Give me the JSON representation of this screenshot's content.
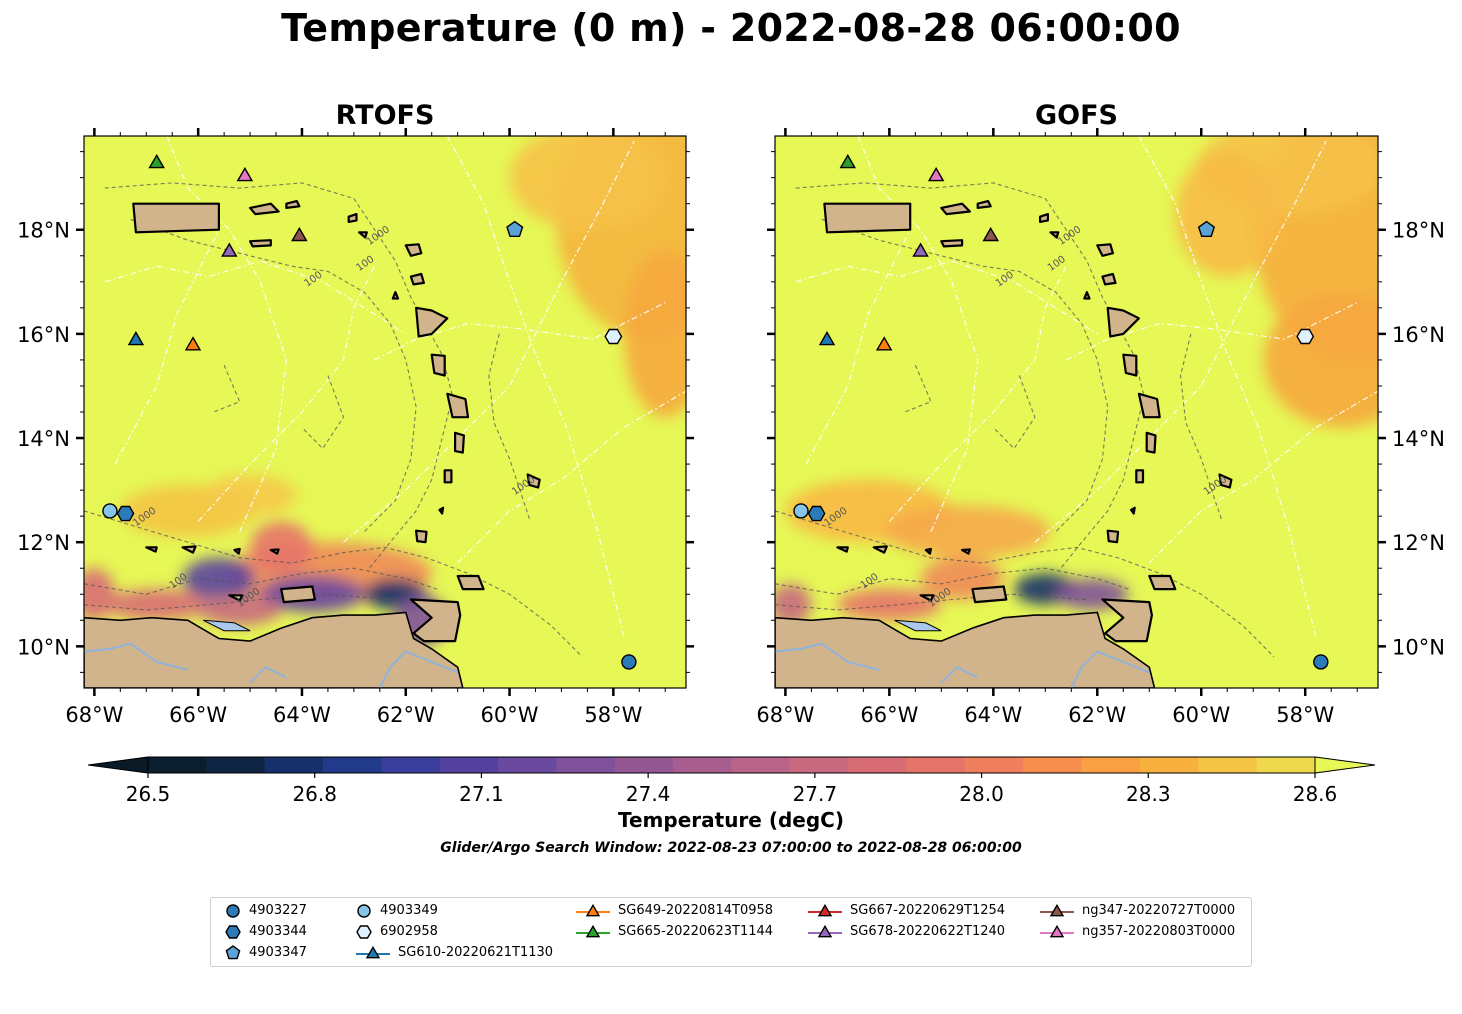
{
  "title": "Temperature (0 m) - 2022-08-28 06:00:00",
  "panels": [
    {
      "title": "RTOFS"
    },
    {
      "title": "GOFS"
    }
  ],
  "axes": {
    "x_ticks": [
      "68°W",
      "66°W",
      "64°W",
      "62°W",
      "60°W",
      "58°W"
    ],
    "y_ticks": [
      "18°N",
      "16°N",
      "14°N",
      "12°N",
      "10°N"
    ],
    "lon_range": [
      -68.2,
      -56.6
    ],
    "lat_range": [
      9.2,
      19.8
    ]
  },
  "isobath_labels": [
    "100",
    "1000"
  ],
  "colorbar": {
    "label": "Temperature (degC)",
    "ticks": [
      "26.5",
      "26.8",
      "27.1",
      "27.4",
      "27.7",
      "28.0",
      "28.3",
      "28.6"
    ],
    "range": [
      26.5,
      28.6
    ],
    "colors": [
      "#0b1e2e",
      "#0f2543",
      "#15306b",
      "#223a8a",
      "#3b3d9c",
      "#54409e",
      "#6a4a9e",
      "#7f519a",
      "#935894",
      "#a75e8e",
      "#b86487",
      "#c8697f",
      "#d86d75",
      "#e6736a",
      "#f0805d",
      "#f68f4e",
      "#f9a042",
      "#f8b13f",
      "#f4c444",
      "#eed94d"
    ],
    "under_color": "#0a1a26",
    "over_color": "#e6f756"
  },
  "colors": {
    "land": "#d2b48c",
    "ocean": "#e6f756",
    "argo_blue": "#2b7bba",
    "argo_light": "#86c5ea",
    "argo_pale": "#dff0ff"
  },
  "search_window": "Glider/Argo Search Window: 2022-08-23 07:00:00 to 2022-08-28 06:00:00",
  "markers": [
    {
      "id": "4903227",
      "shape": "circle",
      "color": "#2b7bba",
      "lon": -57.7,
      "lat": 9.7
    },
    {
      "id": "4903344",
      "shape": "hexagon",
      "color": "#2b7bba",
      "lon": -67.4,
      "lat": 12.55
    },
    {
      "id": "4903347",
      "shape": "pentagon",
      "color": "#5ba3d4",
      "lon": -59.9,
      "lat": 18.0
    },
    {
      "id": "4903349",
      "shape": "circle",
      "color": "#86c5ea",
      "lon": -67.7,
      "lat": 12.6
    },
    {
      "id": "6902958",
      "shape": "hexagon",
      "color": "#dff0ff",
      "lon": -58.0,
      "lat": 15.95
    },
    {
      "id": "SG610-20220621T1130",
      "shape": "triangle",
      "color": "#1f77b4",
      "lon": -67.2,
      "lat": 15.9
    },
    {
      "id": "SG649-20220814T0958",
      "shape": "triangle",
      "color": "#ff7f0e",
      "lon": -66.1,
      "lat": 15.8
    },
    {
      "id": "SG665-20220623T1144",
      "shape": "triangle",
      "color": "#2ca02c",
      "lon": -66.8,
      "lat": 19.3
    },
    {
      "id": "SG667-20220629T1254",
      "shape": "triangle",
      "color": "#d62728",
      "lon": null,
      "lat": null
    },
    {
      "id": "SG678-20220622T1240",
      "shape": "triangle",
      "color": "#9467bd",
      "lon": -65.4,
      "lat": 17.6
    },
    {
      "id": "ng347-20220727T0000",
      "shape": "triangle",
      "color": "#8c564b",
      "lon": -64.05,
      "lat": 17.9
    },
    {
      "id": "ng357-20220803T0000",
      "shape": "triangle",
      "color": "#e377c2",
      "lon": -65.1,
      "lat": 19.05
    }
  ],
  "legend": {
    "columns": [
      [
        "4903227",
        "4903344",
        "4903347"
      ],
      [
        "4903349",
        "6902958",
        "SG610-20220621T1130"
      ],
      [
        "SG649-20220814T0958",
        "SG665-20220623T1144"
      ],
      [
        "SG667-20220629T1254",
        "SG678-20220622T1240"
      ],
      [
        "ng347-20220727T0000",
        "ng357-20220803T0000"
      ]
    ]
  }
}
